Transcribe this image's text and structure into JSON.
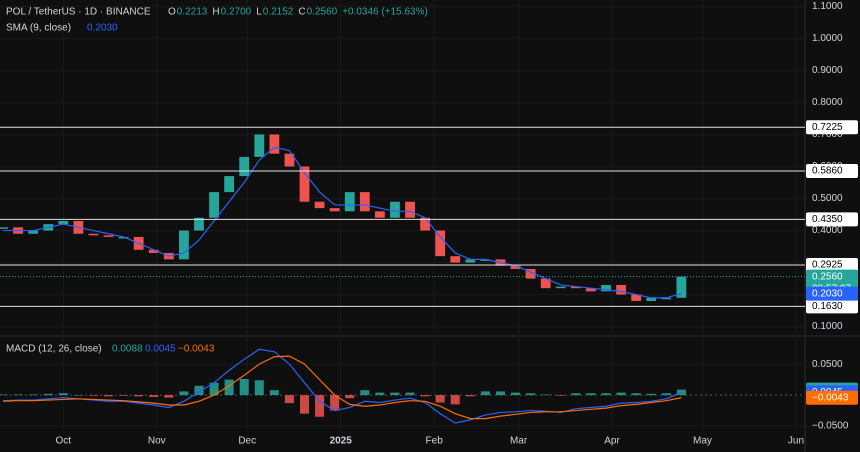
{
  "chart_data": {
    "type": "candlestick",
    "header": {
      "symbol": "POL / TetherUS · 1D · BINANCE",
      "ohlc": [
        {
          "key": "O",
          "value": "0.2213"
        },
        {
          "key": "H",
          "value": "0.2700"
        },
        {
          "key": "L",
          "value": "0.2152"
        },
        {
          "key": "C",
          "value": "0.2560"
        }
      ],
      "change": "+0.0346 (+15.63%)",
      "sma_label": "SMA (9, close)",
      "sma_value": "0.2030",
      "macd_label": "MACD (12, 26, close)",
      "macd_values": [
        "0.0088",
        "0.0045",
        "−0.0043"
      ]
    },
    "x": [
      -20,
      -15,
      -10,
      -5,
      0,
      5,
      10,
      15,
      20,
      25,
      30,
      35,
      40,
      45,
      50,
      55,
      60,
      65,
      70,
      75,
      80,
      85,
      90,
      95,
      100,
      105,
      110,
      115,
      120,
      125,
      130,
      135,
      140,
      145,
      150,
      155,
      160,
      165,
      170,
      175,
      180,
      185,
      190,
      195,
      200,
      205
    ],
    "xlim": [
      -21,
      246
    ],
    "xticks": [
      {
        "value": 0,
        "label": "Oct"
      },
      {
        "value": 31,
        "label": "Nov"
      },
      {
        "value": 61,
        "label": "Dec"
      },
      {
        "value": 92,
        "label": "2025"
      },
      {
        "value": 123,
        "label": "Feb"
      },
      {
        "value": 151,
        "label": "Mar"
      },
      {
        "value": 182,
        "label": "Apr"
      },
      {
        "value": 212,
        "label": "May"
      },
      {
        "value": 243,
        "label": "Jun"
      }
    ],
    "ylim": [
      0.08,
      1.12
    ],
    "yticks": [
      {
        "value": 1.1,
        "label": "1.1000"
      },
      {
        "value": 1.0,
        "label": "1.0000"
      },
      {
        "value": 0.9,
        "label": "0.9000"
      },
      {
        "value": 0.8,
        "label": "0.8000"
      },
      {
        "value": 0.7,
        "label": "0.7000"
      },
      {
        "value": 0.6,
        "label": "0.6000"
      },
      {
        "value": 0.5,
        "label": "0.5000"
      },
      {
        "value": 0.4,
        "label": "0.4000"
      },
      {
        "value": 0.3,
        "label": "0.3000"
      },
      {
        "value": 0.2,
        "label": "0.2000"
      },
      {
        "value": 0.1,
        "label": "0.1000"
      }
    ],
    "series": [
      {
        "name": "POL / TetherUS",
        "color_up": "#26a69a",
        "color_down": "#ef5350",
        "values": [
          0.41,
          0.39,
          0.4,
          0.42,
          0.43,
          0.39,
          0.385,
          0.38,
          0.38,
          0.34,
          0.33,
          0.31,
          0.4,
          0.44,
          0.52,
          0.57,
          0.63,
          0.7,
          0.64,
          0.6,
          0.49,
          0.47,
          0.46,
          0.52,
          0.46,
          0.44,
          0.49,
          0.44,
          0.4,
          0.32,
          0.3,
          0.31,
          0.31,
          0.29,
          0.28,
          0.25,
          0.22,
          0.225,
          0.22,
          0.21,
          0.23,
          0.2,
          0.18,
          0.19,
          0.19,
          0.256
        ]
      },
      {
        "name": "SMA (9, close)",
        "color": "#2962ff",
        "values": [
          0.4,
          0.4,
          0.4,
          0.41,
          0.42,
          0.41,
          0.4,
          0.39,
          0.38,
          0.36,
          0.34,
          0.32,
          0.33,
          0.37,
          0.43,
          0.49,
          0.55,
          0.62,
          0.66,
          0.65,
          0.58,
          0.52,
          0.48,
          0.48,
          0.48,
          0.47,
          0.46,
          0.46,
          0.44,
          0.38,
          0.33,
          0.31,
          0.31,
          0.3,
          0.29,
          0.27,
          0.25,
          0.23,
          0.225,
          0.22,
          0.215,
          0.21,
          0.2,
          0.19,
          0.19,
          0.203
        ]
      }
    ],
    "levels": [
      {
        "value": 0.7225,
        "label": "0.7225"
      },
      {
        "value": 0.586,
        "label": "0.5860"
      },
      {
        "value": 0.435,
        "label": "0.4350"
      },
      {
        "value": 0.2925,
        "label": "0.2925"
      },
      {
        "value": 0.163,
        "label": "0.1630"
      }
    ],
    "last_price": {
      "value": 0.256,
      "label": "0.2560",
      "countdown": "08:57:07",
      "color": "#26a69a"
    },
    "sma_last": {
      "value": 0.203,
      "label": "0.2030",
      "color": "#2962ff"
    },
    "macd": {
      "ylim": [
        -0.058,
        0.089
      ],
      "yticks": [
        {
          "value": 0.05,
          "label": "0.0500"
        },
        {
          "value": 0,
          "label": "0.0000"
        },
        {
          "value": -0.05,
          "label": "−0.0500"
        }
      ],
      "histogram": {
        "name": "Histogram",
        "color_up": "#26a69a",
        "color_down": "#ef5350",
        "values": [
          0.001,
          0.001,
          0.001,
          0.002,
          0.003,
          0,
          -0.001,
          -0.002,
          -0.001,
          -0.002,
          -0.003,
          -0.004,
          0.006,
          0.015,
          0.02,
          0.025,
          0.026,
          0.024,
          0.008,
          -0.013,
          -0.03,
          -0.035,
          -0.025,
          -0.005,
          0.008,
          0.004,
          0.004,
          0.004,
          -0.002,
          -0.012,
          -0.015,
          -0.002,
          0.006,
          0.006,
          0.004,
          0.003,
          0.001,
          -0.001,
          0.003,
          0.003,
          0.003,
          0.004,
          0.003,
          0.002,
          0.003,
          0.0088
        ],
        "last": {
          "value": 0.0088,
          "label": "0.0088"
        }
      },
      "lines": [
        {
          "name": "MACD",
          "color": "#2962ff",
          "values": [
            -0.009,
            -0.008,
            -0.008,
            -0.006,
            -0.004,
            -0.006,
            -0.008,
            -0.01,
            -0.01,
            -0.013,
            -0.016,
            -0.02,
            -0.01,
            0.005,
            0.02,
            0.04,
            0.058,
            0.074,
            0.07,
            0.05,
            0.02,
            -0.01,
            -0.025,
            -0.02,
            -0.01,
            -0.012,
            -0.008,
            -0.005,
            -0.012,
            -0.03,
            -0.045,
            -0.04,
            -0.032,
            -0.028,
            -0.027,
            -0.025,
            -0.026,
            -0.028,
            -0.022,
            -0.02,
            -0.018,
            -0.013,
            -0.012,
            -0.01,
            -0.006,
            0.0045
          ],
          "last": {
            "value": 0.0045,
            "label": "0.0045"
          }
        },
        {
          "name": "Signal",
          "color": "#ff6d00",
          "values": [
            -0.01,
            -0.009,
            -0.009,
            -0.008,
            -0.007,
            -0.006,
            -0.007,
            -0.008,
            -0.009,
            -0.011,
            -0.013,
            -0.016,
            -0.016,
            -0.01,
            0.0,
            0.015,
            0.032,
            0.05,
            0.062,
            0.063,
            0.05,
            0.025,
            0.0,
            -0.015,
            -0.018,
            -0.016,
            -0.012,
            -0.009,
            -0.01,
            -0.018,
            -0.03,
            -0.038,
            -0.038,
            -0.034,
            -0.031,
            -0.028,
            -0.027,
            -0.027,
            -0.025,
            -0.023,
            -0.021,
            -0.017,
            -0.015,
            -0.012,
            -0.009,
            -0.0043
          ],
          "last": {
            "value": -0.0043,
            "label": "−0.0043"
          }
        }
      ]
    }
  }
}
